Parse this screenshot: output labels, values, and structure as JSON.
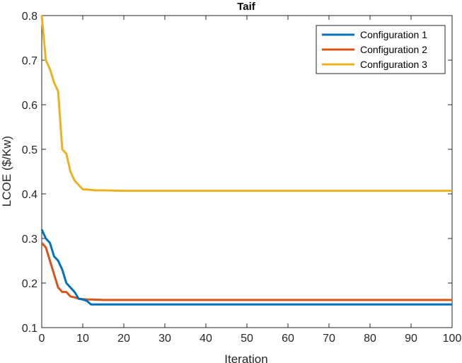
{
  "chart_data": {
    "type": "line",
    "title": "Taif",
    "xlabel": "Iteration",
    "ylabel": "LCOE ($/Kw)",
    "xlim": [
      0,
      100
    ],
    "ylim": [
      0.1,
      0.8
    ],
    "xticks": [
      0,
      10,
      20,
      30,
      40,
      50,
      60,
      70,
      80,
      90,
      100
    ],
    "yticks": [
      0.1,
      0.2,
      0.3,
      0.4,
      0.5,
      0.6,
      0.7,
      0.8
    ],
    "grid": false,
    "legend_position": "top-right",
    "series": [
      {
        "name": "Configuration 1",
        "color": "#0072BD",
        "x": [
          0,
          1,
          2,
          3,
          4,
          5,
          6,
          7,
          8,
          9,
          10,
          11,
          12,
          15,
          20,
          30,
          40,
          50,
          60,
          70,
          80,
          90,
          100
        ],
        "y": [
          0.32,
          0.3,
          0.29,
          0.26,
          0.25,
          0.23,
          0.2,
          0.19,
          0.18,
          0.165,
          0.163,
          0.16,
          0.152,
          0.152,
          0.152,
          0.152,
          0.152,
          0.152,
          0.152,
          0.152,
          0.152,
          0.152,
          0.152
        ]
      },
      {
        "name": "Configuration 2",
        "color": "#D95319",
        "x": [
          0,
          1,
          2,
          3,
          4,
          5,
          6,
          7,
          8,
          9,
          10,
          11,
          12,
          15,
          20,
          30,
          40,
          50,
          60,
          70,
          80,
          90,
          100
        ],
        "y": [
          0.29,
          0.28,
          0.25,
          0.22,
          0.19,
          0.18,
          0.18,
          0.17,
          0.168,
          0.165,
          0.164,
          0.163,
          0.163,
          0.162,
          0.162,
          0.162,
          0.162,
          0.162,
          0.162,
          0.162,
          0.162,
          0.162,
          0.162
        ]
      },
      {
        "name": "Configuration 3",
        "color": "#EDB120",
        "x": [
          0,
          1,
          2,
          3,
          4,
          5,
          6,
          7,
          8,
          9,
          10,
          11,
          12,
          13,
          15,
          20,
          30,
          40,
          50,
          60,
          70,
          80,
          90,
          100
        ],
        "y": [
          0.8,
          0.7,
          0.68,
          0.65,
          0.63,
          0.5,
          0.49,
          0.45,
          0.43,
          0.42,
          0.41,
          0.41,
          0.409,
          0.408,
          0.408,
          0.407,
          0.407,
          0.407,
          0.407,
          0.407,
          0.407,
          0.407,
          0.407,
          0.407
        ]
      }
    ]
  }
}
